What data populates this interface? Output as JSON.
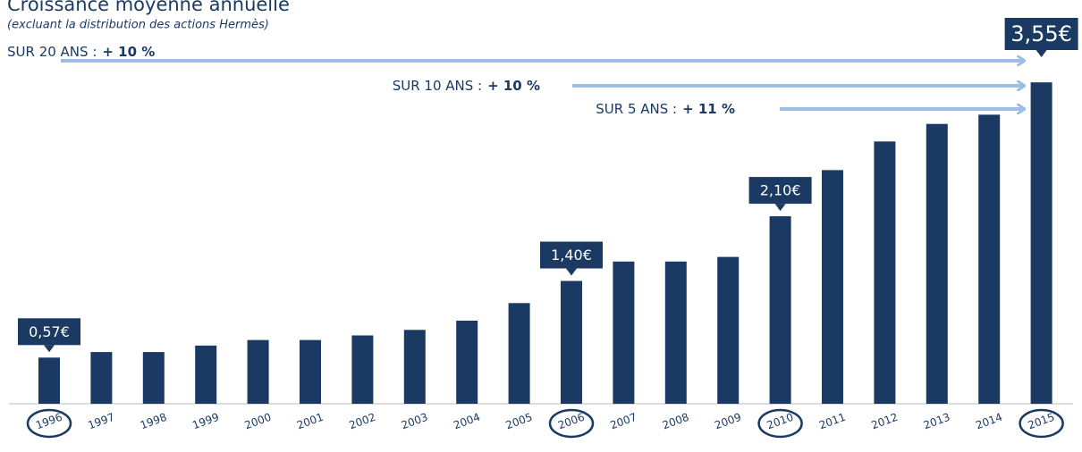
{
  "chart_data": {
    "type": "bar",
    "title": "Croissance moyenne annuelle",
    "subtitle": "(excluant la distribution des actions Hermès)",
    "annotations": [
      {
        "label": "SUR 20 ANS :",
        "value": "+ 10 %"
      },
      {
        "label": "SUR 10 ANS :",
        "value": "+ 10 %"
      },
      {
        "label": "SUR 5 ANS :",
        "value": "+ 11 %"
      }
    ],
    "categories": [
      "1996",
      "1997",
      "1998",
      "1999",
      "2000",
      "2001",
      "2002",
      "2003",
      "2004",
      "2005",
      "2006",
      "2007",
      "2008",
      "2009",
      "2010",
      "2011",
      "2012",
      "2013",
      "2014",
      "2015"
    ],
    "values": [
      0.57,
      0.63,
      0.63,
      0.7,
      0.76,
      0.76,
      0.81,
      0.87,
      0.97,
      1.16,
      1.4,
      1.61,
      1.61,
      1.66,
      2.1,
      2.6,
      2.91,
      3.1,
      3.2,
      3.55
    ],
    "value_labels": [
      "0,57€",
      null,
      null,
      null,
      null,
      null,
      null,
      null,
      null,
      null,
      "1,40€",
      null,
      null,
      null,
      "2,10€",
      null,
      null,
      null,
      null,
      "3,55€"
    ],
    "color": "#1b3a63",
    "ylim": [
      0.07,
      3.9
    ]
  }
}
